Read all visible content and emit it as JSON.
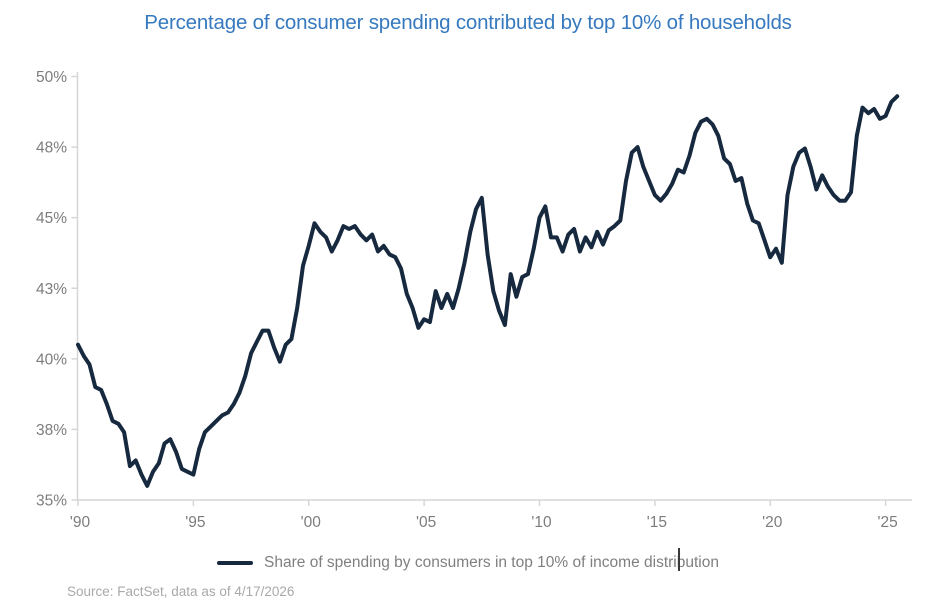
{
  "title": "Percentage of consumer spending contributed by top 10% of households",
  "legend": {
    "label": "Share of spending by consumers in top 10% of income distribution"
  },
  "source": "Source: FactSet, data as of 4/17/2026",
  "colors": {
    "title": "#3679be",
    "line": "#16293f",
    "axis": "#d6d6d6",
    "tick_label": "#7d7d7d",
    "legend_text": "#7f7f7f",
    "source_text": "#a9a9a9",
    "background": "#ffffff"
  },
  "chart_data": {
    "type": "line",
    "title": "Percentage of consumer spending contributed by top 10% of households",
    "xlabel": "",
    "ylabel": "",
    "grid": false,
    "legend_position": "bottom",
    "xlim": [
      1990,
      2026.1
    ],
    "ylim": [
      35,
      50
    ],
    "x_ticks": [
      {
        "label": "'90",
        "value": 1990
      },
      {
        "label": "'95",
        "value": 1995
      },
      {
        "label": "'00",
        "value": 2000
      },
      {
        "label": "'05",
        "value": 2005
      },
      {
        "label": "'10",
        "value": 2010
      },
      {
        "label": "'15",
        "value": 2015
      },
      {
        "label": "'20",
        "value": 2020
      },
      {
        "label": "'25",
        "value": 2025
      }
    ],
    "y_ticks": [
      {
        "label": "50%",
        "value": 50
      },
      {
        "label": "48%",
        "value": 47.5
      },
      {
        "label": "45%",
        "value": 45
      },
      {
        "label": "43%",
        "value": 42.5
      },
      {
        "label": "40%",
        "value": 40
      },
      {
        "label": "38%",
        "value": 37.5
      },
      {
        "label": "35%",
        "value": 35
      }
    ],
    "series": [
      {
        "name": "Share of spending by consumers in top 10% of income distribution",
        "color": "#16293f",
        "x_start": 1990.0,
        "x_step_years": 0.25,
        "values": [
          40.5,
          40.1,
          39.8,
          39.0,
          38.9,
          38.4,
          37.8,
          37.7,
          37.4,
          36.2,
          36.4,
          35.9,
          35.5,
          36.0,
          36.3,
          37.0,
          37.15,
          36.7,
          36.1,
          36.0,
          35.9,
          36.8,
          37.4,
          37.6,
          37.8,
          38.0,
          38.1,
          38.4,
          38.8,
          39.4,
          40.2,
          40.6,
          41.0,
          41.0,
          40.4,
          39.9,
          40.5,
          40.7,
          41.8,
          43.3,
          44.0,
          44.8,
          44.5,
          44.3,
          43.8,
          44.2,
          44.7,
          44.6,
          44.7,
          44.4,
          44.2,
          44.4,
          43.8,
          44.0,
          43.7,
          43.6,
          43.2,
          42.3,
          41.8,
          41.1,
          41.4,
          41.3,
          42.4,
          41.8,
          42.3,
          41.8,
          42.5,
          43.4,
          44.5,
          45.3,
          45.7,
          43.7,
          42.4,
          41.7,
          41.2,
          43.0,
          42.2,
          42.9,
          43.0,
          43.9,
          45.0,
          45.4,
          44.3,
          44.3,
          43.8,
          44.4,
          44.6,
          43.8,
          44.3,
          43.95,
          44.5,
          44.05,
          44.55,
          44.7,
          44.9,
          46.3,
          47.3,
          47.5,
          46.8,
          46.3,
          45.8,
          45.6,
          45.85,
          46.2,
          46.7,
          46.6,
          47.2,
          48.0,
          48.4,
          48.5,
          48.3,
          47.9,
          47.1,
          46.9,
          46.3,
          46.4,
          45.5,
          44.9,
          44.8,
          44.2,
          43.6,
          43.9,
          43.4,
          45.8,
          46.8,
          47.3,
          47.45,
          46.8,
          46.0,
          46.5,
          46.1,
          45.8,
          45.6,
          45.6,
          45.9,
          47.9,
          48.9,
          48.7,
          48.85,
          48.5,
          48.6,
          49.1,
          49.3
        ]
      }
    ]
  }
}
